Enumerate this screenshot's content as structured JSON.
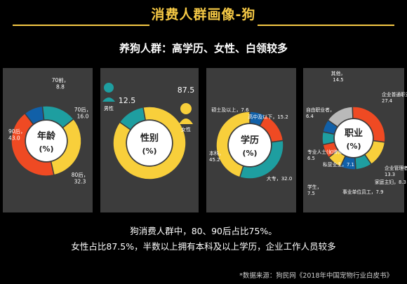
{
  "title": "消费人群画像-狗",
  "subtitle": "养狗人群：高学历、女性、白领较多",
  "summary_lines": [
    "狗消费人群中，80、90后占比75%。",
    "女性占比87.5%，半数以上拥有本科及以上学历，企业工作人员较多"
  ],
  "source": "*数据来源：狗民网《2018年中国宠物行业白皮书》",
  "colors": {
    "red": "#ef4a23",
    "yellow": "#f8cf3b",
    "teal": "#1e9ea0",
    "blue": "#1160a8",
    "gray": "#b9b9b9",
    "panel": "#3c3c3c",
    "hole": "#ffffff"
  },
  "chart_data": [
    {
      "type": "pie",
      "title": "年龄",
      "unit": "(%)",
      "slices": [
        {
          "name": "70前",
          "value": 8.8,
          "color": "#1160a8"
        },
        {
          "name": "70后",
          "value": 16.0,
          "color": "#1e9ea0"
        },
        {
          "name": "80后",
          "value": 32.3,
          "color": "#f8cf3b"
        },
        {
          "name": "90后",
          "value": 43.0,
          "color": "#ef4a23"
        }
      ]
    },
    {
      "type": "pie",
      "title": "性别",
      "unit": "(%)",
      "slices": [
        {
          "name": "男性",
          "value": 12.5,
          "color": "#1e9ea0"
        },
        {
          "name": "女性",
          "value": 87.5,
          "color": "#f8cf3b"
        }
      ]
    },
    {
      "type": "pie",
      "title": "学历",
      "unit": "(%)",
      "slices": [
        {
          "name": "硕士及以上",
          "value": 7.6,
          "color": "#1160a8"
        },
        {
          "name": "高中及以下",
          "value": 15.2,
          "color": "#ef4a23"
        },
        {
          "name": "大专",
          "value": 32.0,
          "color": "#1e9ea0"
        },
        {
          "name": "本科",
          "value": 45.2,
          "color": "#f8cf3b"
        }
      ]
    },
    {
      "type": "pie",
      "title": "职业",
      "unit": "(%)",
      "slices": [
        {
          "name": "其他",
          "value": 14.5,
          "color": "#b9b9b9"
        },
        {
          "name": "企业普通职员",
          "value": 27.4,
          "color": "#ef4a23"
        },
        {
          "name": "企业管理者",
          "value": 13.3,
          "color": "#f8cf3b"
        },
        {
          "name": "家庭主妇",
          "value": 8.3,
          "color": "#1e9ea0"
        },
        {
          "name": "事业单位员工",
          "value": 7.9,
          "color": "#1160a8"
        },
        {
          "name": "学生",
          "value": 7.5,
          "color": "#f8cf3b"
        },
        {
          "name": "私营业主",
          "value": 7.1,
          "color": "#ef4a23"
        },
        {
          "name": "专业人士(如律师)",
          "value": 6.5,
          "color": "#1e9ea0"
        },
        {
          "name": "自由职业者",
          "value": 6.4,
          "color": "#1160a8"
        }
      ]
    }
  ]
}
